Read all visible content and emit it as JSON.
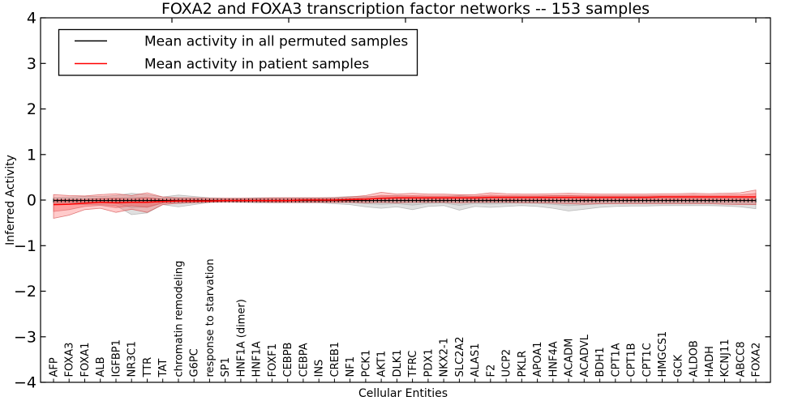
{
  "figure": {
    "title": "FOXA2 and FOXA3 transcription factor networks -- 153 samples",
    "xlabel": "Cellular Entities",
    "ylabel": "Inferred Activity",
    "legend": [
      {
        "label": "Mean activity in all permuted samples",
        "color": "#000000"
      },
      {
        "label": "Mean activity in patient samples",
        "color": "#ff0000"
      }
    ]
  },
  "chart_data": {
    "type": "line",
    "title": "FOXA2 and FOXA3 transcription factor networks -- 153 samples",
    "xlabel": "Cellular Entities",
    "ylabel": "Inferred Activity",
    "ylim": [
      -4,
      4
    ],
    "yticks": [
      -4,
      -3,
      -2,
      -1,
      0,
      1,
      2,
      3,
      4
    ],
    "grid": false,
    "legend_position": "upper left",
    "categories": [
      "AFP",
      "FOXA3",
      "FOXA1",
      "ALB",
      "IGFBP1",
      "NR3C1",
      "TTR",
      "TAT",
      "chromatin remodeling",
      "G6PC",
      "response to starvation",
      "SP1",
      "HNF1A (dimer)",
      "HNF1A",
      "FOXF1",
      "CEBPB",
      "CEBPA",
      "INS",
      "CREB1",
      "NF1",
      "PCK1",
      "AKT1",
      "DLK1",
      "TFRC",
      "PDX1",
      "NKX2-1",
      "SLC2A2",
      "ALAS1",
      "F2",
      "UCP2",
      "PKLR",
      "APOA1",
      "HNF4A",
      "ACADM",
      "ACADVL",
      "BDH1",
      "CPT1A",
      "CPT1B",
      "CPT1C",
      "HMGCS1",
      "GCK",
      "ALDOB",
      "HADH",
      "KCNJ11",
      "ABCC8",
      "FOXA2"
    ],
    "series": [
      {
        "name": "Mean activity in all permuted samples",
        "color": "#000000",
        "band_color": "#c8c8c8",
        "values": [
          -0.01,
          -0.01,
          -0.01,
          -0.01,
          -0.01,
          -0.01,
          -0.01,
          -0.01,
          -0.01,
          -0.01,
          -0.01,
          -0.01,
          -0.01,
          -0.01,
          -0.01,
          -0.01,
          -0.01,
          -0.01,
          -0.01,
          -0.01,
          -0.01,
          -0.01,
          -0.01,
          -0.01,
          -0.01,
          -0.01,
          -0.01,
          -0.01,
          -0.01,
          -0.01,
          -0.01,
          -0.01,
          -0.01,
          -0.01,
          -0.01,
          -0.01,
          -0.01,
          -0.01,
          -0.01,
          -0.01,
          -0.01,
          -0.01,
          -0.01,
          -0.01,
          -0.01,
          -0.01
        ],
        "band_upper": [
          0.06,
          0.07,
          0.08,
          0.08,
          0.1,
          0.15,
          0.12,
          0.07,
          0.11,
          0.08,
          0.05,
          0.04,
          0.04,
          0.05,
          0.05,
          0.05,
          0.05,
          0.05,
          0.06,
          0.08,
          0.08,
          0.08,
          0.1,
          0.08,
          0.08,
          0.08,
          0.1,
          0.08,
          0.08,
          0.08,
          0.08,
          0.08,
          0.1,
          0.1,
          0.08,
          0.08,
          0.08,
          0.08,
          0.08,
          0.08,
          0.08,
          0.08,
          0.08,
          0.08,
          0.08,
          0.08
        ],
        "band_lower": [
          -0.08,
          -0.09,
          -0.1,
          -0.1,
          -0.12,
          -0.32,
          -0.28,
          -0.1,
          -0.15,
          -0.1,
          -0.05,
          -0.04,
          -0.05,
          -0.06,
          -0.06,
          -0.06,
          -0.06,
          -0.06,
          -0.08,
          -0.1,
          -0.15,
          -0.18,
          -0.15,
          -0.21,
          -0.14,
          -0.12,
          -0.22,
          -0.14,
          -0.16,
          -0.14,
          -0.12,
          -0.14,
          -0.18,
          -0.24,
          -0.2,
          -0.16,
          -0.14,
          -0.13,
          -0.13,
          -0.12,
          -0.12,
          -0.12,
          -0.12,
          -0.13,
          -0.15,
          -0.19
        ]
      },
      {
        "name": "Mean activity in patient samples",
        "color": "#ff0000",
        "band_color": "#f08080",
        "values": [
          -0.1,
          -0.09,
          -0.07,
          -0.05,
          -0.06,
          -0.05,
          -0.05,
          -0.03,
          -0.02,
          -0.02,
          -0.02,
          -0.01,
          -0.01,
          -0.01,
          -0.01,
          -0.01,
          0.0,
          0.0,
          0.0,
          0.01,
          0.02,
          0.04,
          0.05,
          0.05,
          0.05,
          0.05,
          0.05,
          0.05,
          0.06,
          0.06,
          0.06,
          0.06,
          0.06,
          0.06,
          0.06,
          0.06,
          0.06,
          0.06,
          0.06,
          0.07,
          0.07,
          0.07,
          0.07,
          0.07,
          0.07,
          0.07
        ],
        "band_upper": [
          0.12,
          0.1,
          0.09,
          0.12,
          0.14,
          0.1,
          0.16,
          0.07,
          0.05,
          0.05,
          0.04,
          0.04,
          0.04,
          0.04,
          0.05,
          0.05,
          0.05,
          0.05,
          0.05,
          0.07,
          0.1,
          0.17,
          0.13,
          0.15,
          0.13,
          0.13,
          0.12,
          0.12,
          0.16,
          0.14,
          0.13,
          0.13,
          0.14,
          0.15,
          0.14,
          0.13,
          0.13,
          0.13,
          0.13,
          0.14,
          0.14,
          0.15,
          0.14,
          0.15,
          0.16,
          0.22
        ],
        "band_lower": [
          -0.4,
          -0.33,
          -0.21,
          -0.18,
          -0.27,
          -0.2,
          -0.27,
          -0.1,
          -0.07,
          -0.06,
          -0.05,
          -0.04,
          -0.04,
          -0.04,
          -0.05,
          -0.05,
          -0.05,
          -0.05,
          -0.05,
          -0.05,
          -0.06,
          -0.05,
          -0.06,
          -0.05,
          -0.05,
          -0.05,
          -0.06,
          -0.05,
          -0.05,
          -0.05,
          -0.06,
          -0.06,
          -0.07,
          -0.08,
          -0.09,
          -0.08,
          -0.08,
          -0.08,
          -0.08,
          -0.08,
          -0.08,
          -0.08,
          -0.08,
          -0.09,
          -0.1,
          -0.1
        ]
      }
    ]
  }
}
